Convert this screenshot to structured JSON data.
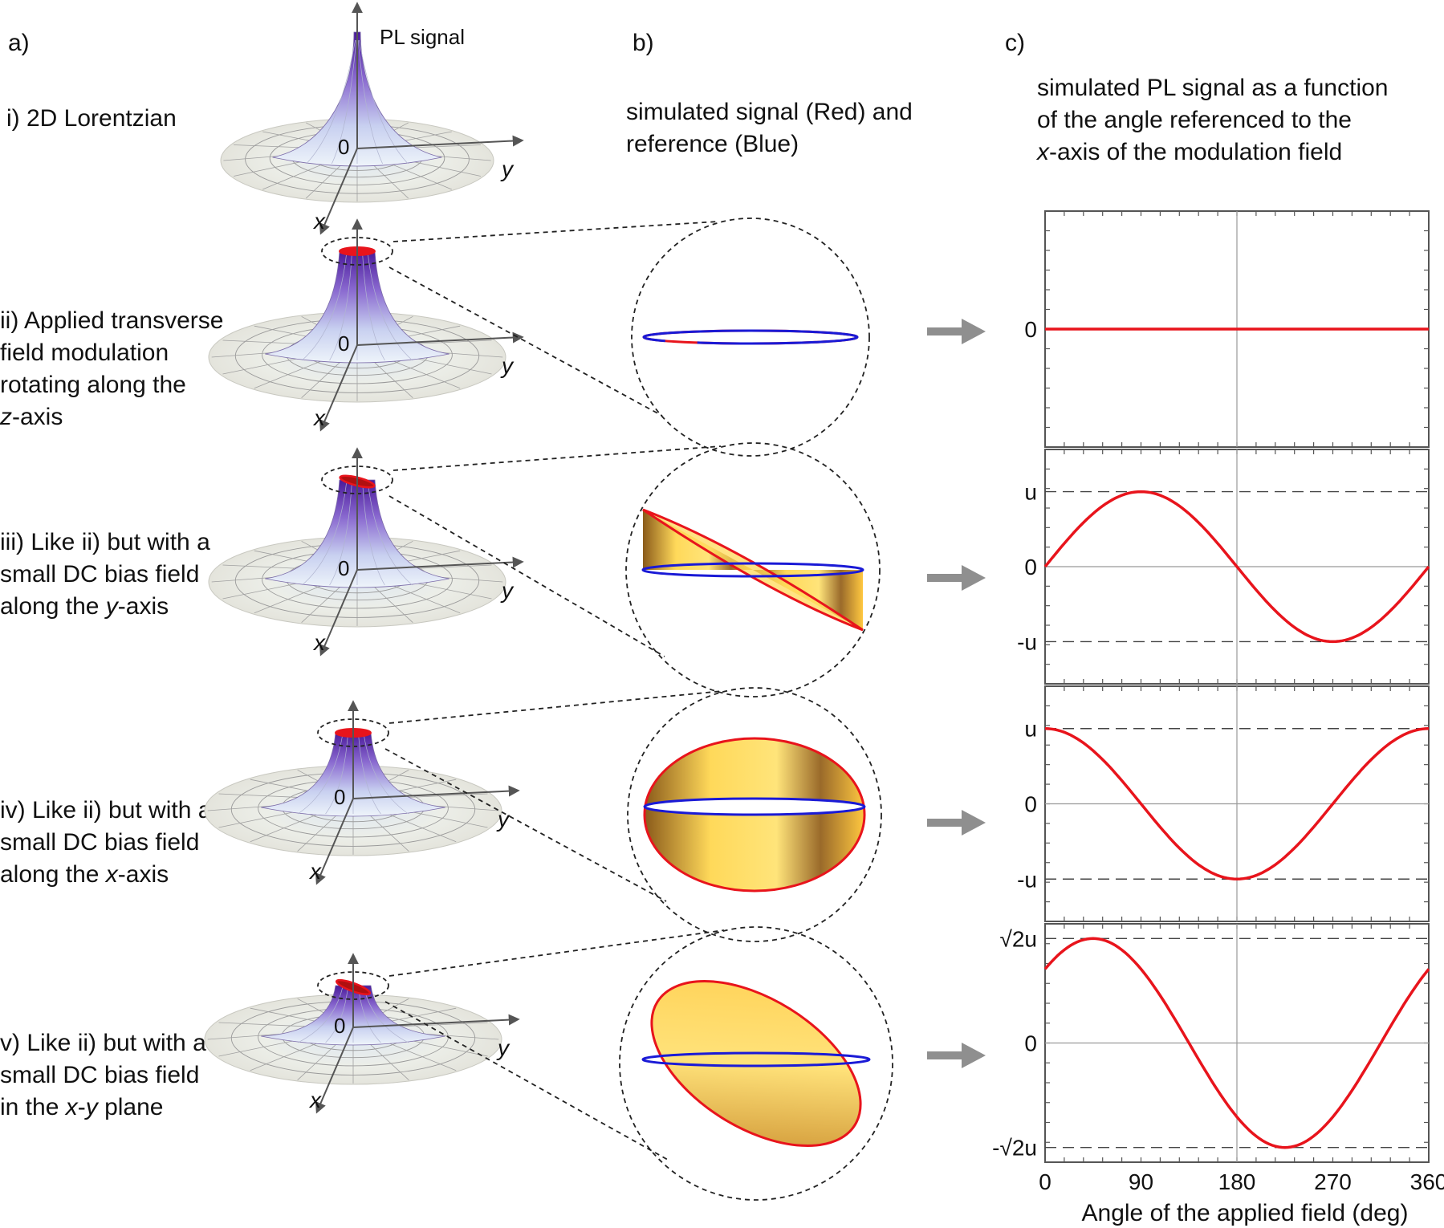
{
  "panel_labels": {
    "a": "a)",
    "b": "b)",
    "c": "c)"
  },
  "column_b_title": [
    "simulated signal (Red) and",
    "reference (Blue)"
  ],
  "column_c_title": {
    "line1": "simulated PL signal as a function",
    "line2": "of the angle referenced to the",
    "line3_italic": "x",
    "line3_rest": "-axis of the modulation field"
  },
  "surface": {
    "z_label": "PL signal",
    "origin": "0",
    "x_axis": "x",
    "y_axis": "y"
  },
  "row_labels": {
    "i": {
      "line1": "i) 2D Lorentzian"
    },
    "ii": {
      "line1": "ii) Applied transverse",
      "line2": "field modulation",
      "line3": "rotating along the",
      "line4_italic": "z",
      "line4_rest": "-axis"
    },
    "iii": {
      "line1": "iii) Like ii) but with a",
      "line2": "small DC bias field",
      "line3_pre": "along the ",
      "line3_italic": "y",
      "line3_post": "-axis"
    },
    "iv": {
      "line1": "iv) Like ii) but with a",
      "line2": "small DC bias field",
      "line3_pre": "along the ",
      "line3_italic": "x",
      "line3_post": "-axis"
    },
    "v": {
      "line1": "v) Like ii) but with a",
      "line2": "small DC bias field",
      "line3_pre": "in the ",
      "line3_italic": "x",
      "line3_mid": "-",
      "line3_italic2": "y",
      "line3_post": " plane"
    }
  },
  "colors": {
    "signal": "#e8141c",
    "reference": "#1a1ad6",
    "fill_light": "#ffd95a",
    "fill_dark": "#8a5a1a",
    "arrow": "#8f8f8f",
    "peak": "#5a2aa8"
  },
  "chart_data": {
    "type": "line",
    "xlabel": "Angle of the applied field (deg)",
    "xlim": [
      0,
      360
    ],
    "x_ticks": [
      "0",
      "90",
      "180",
      "270",
      "360"
    ],
    "panels": [
      {
        "name": "ii",
        "y_ticks": [
          "0"
        ],
        "amplitude": 0,
        "phase_deg": 0,
        "series": {
          "name": "signal",
          "formula": "0"
        }
      },
      {
        "name": "iii",
        "y_ticks": [
          "u",
          "0",
          "-u"
        ],
        "amplitude": 1,
        "phase_deg": 0,
        "series": {
          "name": "signal",
          "formula": "u*sin(theta)"
        }
      },
      {
        "name": "iv",
        "y_ticks": [
          "u",
          "0",
          "-u"
        ],
        "amplitude": 1,
        "phase_deg": 90,
        "series": {
          "name": "signal",
          "formula": "u*cos(theta)"
        }
      },
      {
        "name": "v",
        "y_ticks": [
          "√2u",
          "0",
          "-√2u"
        ],
        "amplitude": 1.4142,
        "phase_deg": 45,
        "series": {
          "name": "signal",
          "formula": "√2u*sin(theta+45)"
        }
      }
    ]
  }
}
